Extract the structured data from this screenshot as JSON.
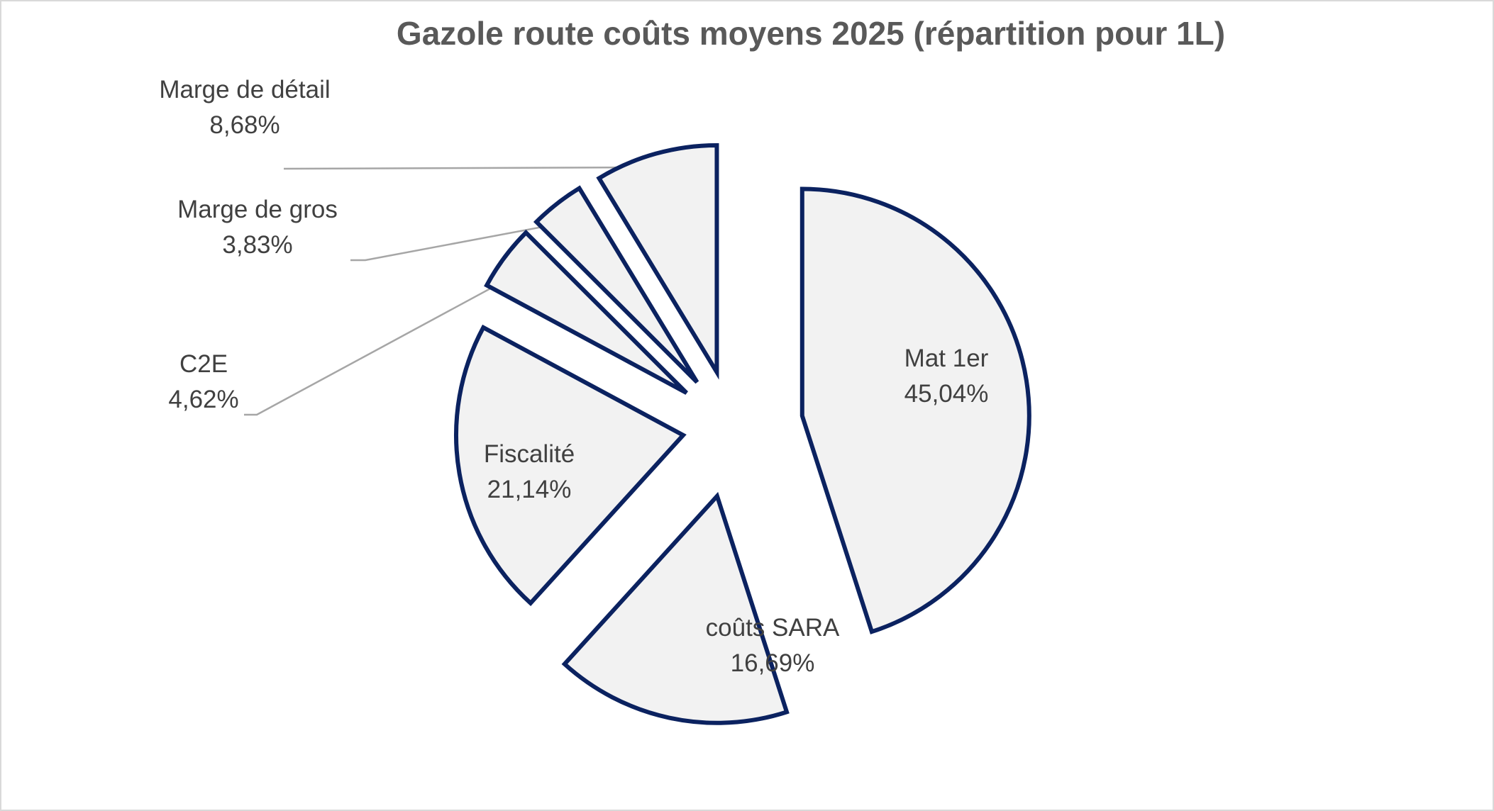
{
  "chart_data": {
    "type": "pie",
    "title": "Gazole route coûts moyens 2025 (répartition pour 1L)",
    "exploded": true,
    "start_angle_deg": 0,
    "direction": "clockwise",
    "slices": [
      {
        "label": "Mat 1er",
        "value": 45.04,
        "display": "45,04%",
        "label_position": "inside"
      },
      {
        "label": "coûts SARA",
        "value": 16.69,
        "display": "16,69%",
        "label_position": "inside"
      },
      {
        "label": "Fiscalité",
        "value": 21.14,
        "display": "21,14%",
        "label_position": "inside"
      },
      {
        "label": "C2E",
        "value": 4.62,
        "display": "4,62%",
        "label_position": "outside"
      },
      {
        "label": "Marge de gros",
        "value": 3.83,
        "display": "3,83%",
        "label_position": "outside"
      },
      {
        "label": "Marge de détail",
        "value": 8.68,
        "display": "8,68%",
        "label_position": "outside"
      }
    ],
    "colors": {
      "fill": "#f2f2f2",
      "stroke": "#0b2260",
      "leader": "#a6a6a6",
      "text": "#404040",
      "title": "#595959"
    },
    "legend": "none"
  }
}
